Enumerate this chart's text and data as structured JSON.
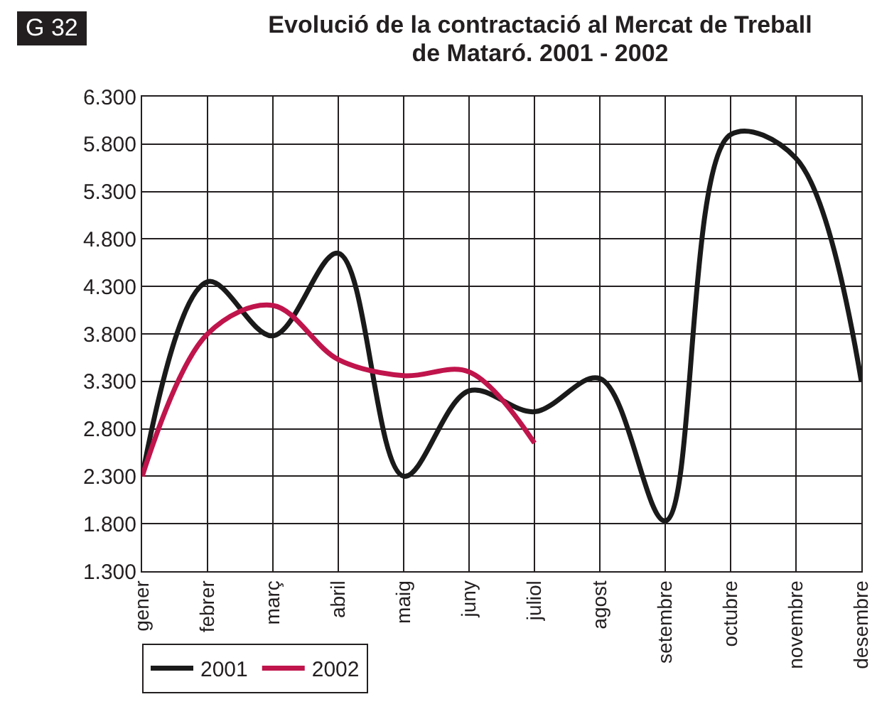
{
  "chart_data": {
    "type": "line",
    "title": "Evolució de la contractació al Mercat de Treball de Mataró. 2001 - 2002",
    "annotations": [
      "G 32"
    ],
    "categories": [
      "gener",
      "febrer",
      "març",
      "abril",
      "maig",
      "juny",
      "juliol",
      "agost",
      "setembre",
      "octubre",
      "novembre",
      "desembre"
    ],
    "series": [
      {
        "name": "2001",
        "color": "#1a1a1a",
        "values": [
          2300,
          4350,
          3780,
          4650,
          2300,
          3200,
          2980,
          3330,
          1830,
          5900,
          5650,
          3300
        ]
      },
      {
        "name": "2002",
        "color": "#c0144c",
        "values": [
          2300,
          3800,
          4100,
          3530,
          3360,
          3400,
          2650,
          null,
          null,
          null,
          null,
          null
        ]
      }
    ],
    "ylim": [
      1300,
      6300
    ],
    "yticks": [
      {
        "value": 1300,
        "label": "1.300"
      },
      {
        "value": 1800,
        "label": "1.800"
      },
      {
        "value": 2300,
        "label": "2.300"
      },
      {
        "value": 2800,
        "label": "2.800"
      },
      {
        "value": 3300,
        "label": "3.300"
      },
      {
        "value": 3800,
        "label": "3.800"
      },
      {
        "value": 4300,
        "label": "4.300"
      },
      {
        "value": 4800,
        "label": "4.800"
      },
      {
        "value": 5300,
        "label": "5.300"
      },
      {
        "value": 5800,
        "label": "5.800"
      },
      {
        "value": 6300,
        "label": "6.300"
      }
    ],
    "grid": true,
    "legend": "bottom left",
    "marker": "none",
    "line_style": "solid"
  }
}
